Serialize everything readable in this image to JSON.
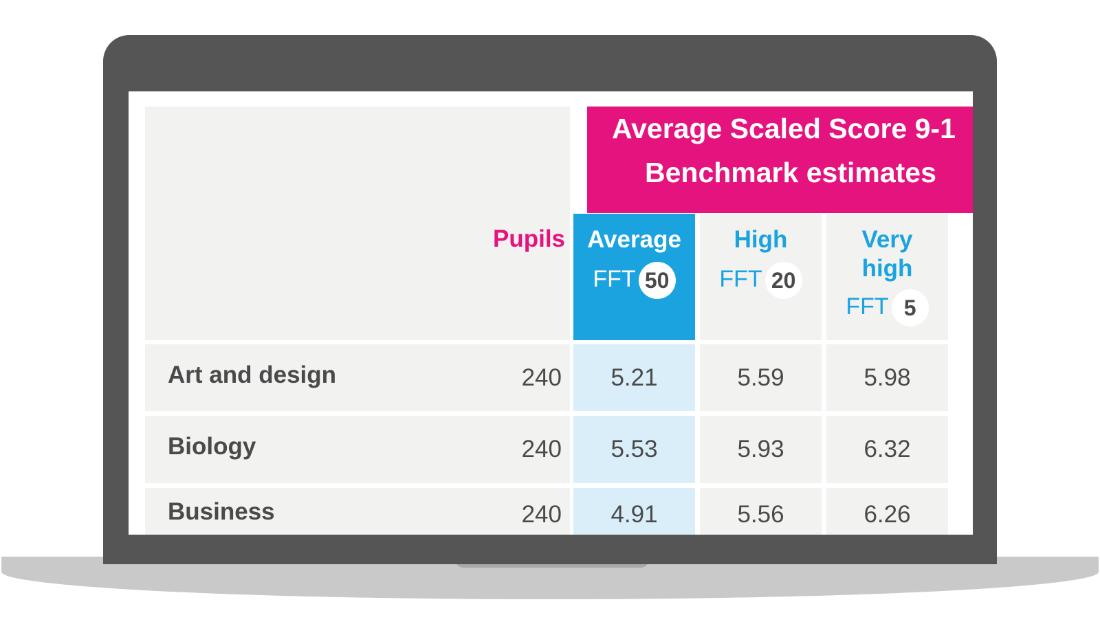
{
  "table": {
    "header": {
      "title_line1": "Average Scaled Score 9-1",
      "title_line2": "Benchmark estimates",
      "pupils_label": "Pupils",
      "columns": [
        {
          "label": "Average",
          "fft_prefix": "FFT",
          "fft_value": "50"
        },
        {
          "label": "High",
          "fft_prefix": "FFT",
          "fft_value": "20"
        },
        {
          "label_line1": "Very",
          "label_line2": "high",
          "fft_prefix": "FFT",
          "fft_value": "5"
        }
      ]
    },
    "rows": [
      {
        "subject": "Art and design",
        "pupils": "240",
        "average": "5.21",
        "high": "5.59",
        "very_high": "5.98"
      },
      {
        "subject": "Biology",
        "pupils": "240",
        "average": "5.53",
        "high": "5.93",
        "very_high": "6.32"
      },
      {
        "subject": "Business",
        "pupils": "240",
        "average": "4.91",
        "high": "5.56",
        "very_high": "6.26"
      }
    ]
  },
  "colors": {
    "accent_pink": "#e4137e",
    "accent_blue": "#1aa3df",
    "average_column_tint": "#d9eef9",
    "row_background": "#f2f2f1",
    "laptop_frame": "#555555"
  }
}
